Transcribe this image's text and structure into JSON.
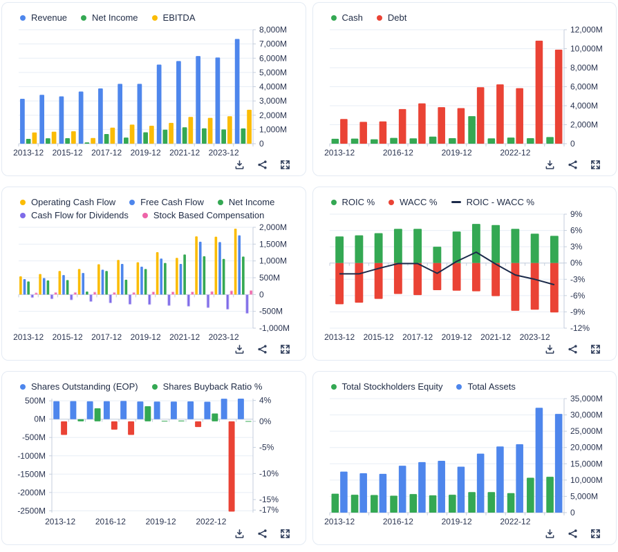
{
  "toolbar": {
    "download_icon": "download-icon",
    "share_icon": "share-icon",
    "expand_icon": "expand-icon"
  },
  "colors": {
    "blue": "#4e86ec",
    "green": "#34a853",
    "yellow": "#fbbc05",
    "red": "#ea4335",
    "purple": "#7e6be8",
    "pink": "#ee64a8",
    "navy_line": "#1b2a4a",
    "grid": "#e7edf5",
    "axis": "#c4cedc",
    "text": "#2a3450"
  },
  "chart_data": [
    {
      "type": "bar",
      "title": "",
      "categories": [
        "2013-12",
        "2014-12",
        "2015-12",
        "2016-12",
        "2017-12",
        "2018-12",
        "2019-12",
        "2020-12",
        "2021-12",
        "2022-12",
        "2023-12",
        "2024-12"
      ],
      "x_label_every": 2,
      "legend": [
        {
          "label": "Revenue",
          "color": "#4e86ec",
          "shape": "dot"
        },
        {
          "label": "Net Income",
          "color": "#34a853",
          "shape": "dot"
        },
        {
          "label": "EBITDA",
          "color": "#fbbc05",
          "shape": "dot"
        }
      ],
      "axes": {
        "right": {
          "min": 0,
          "max": 8000,
          "grid": true,
          "ticks": [
            {
              "v": 8000,
              "label": "8,000M"
            },
            {
              "v": 7000,
              "label": "7,000M"
            },
            {
              "v": 6000,
              "label": "6,000M"
            },
            {
              "v": 5000,
              "label": "5,000M"
            },
            {
              "v": 4000,
              "label": "4,000M"
            },
            {
              "v": 3000,
              "label": "3,000M"
            },
            {
              "v": 2000,
              "label": "2,000M"
            },
            {
              "v": 1000,
              "label": "1,000M"
            },
            {
              "v": 0,
              "label": "0"
            }
          ]
        }
      },
      "series": [
        {
          "name": "Revenue",
          "type": "bar",
          "axis": "right",
          "color": "#4e86ec",
          "values": [
            3150,
            3430,
            3320,
            3660,
            3880,
            4200,
            4200,
            5550,
            5800,
            6150,
            6050,
            7350
          ]
        },
        {
          "name": "Net Income",
          "type": "bar",
          "axis": "right",
          "color": "#34a853",
          "values": [
            340,
            380,
            390,
            90,
            680,
            430,
            800,
            980,
            1150,
            1080,
            1000,
            1070
          ]
        },
        {
          "name": "EBITDA",
          "type": "bar",
          "axis": "right",
          "color": "#fbbc05",
          "values": [
            790,
            840,
            870,
            400,
            1130,
            1340,
            1260,
            1460,
            1880,
            1810,
            1930,
            2380
          ]
        }
      ]
    },
    {
      "type": "bar",
      "title": "",
      "categories": [
        "2013-12",
        "2014-12",
        "2015-12",
        "2016-12",
        "2017-12",
        "2018-12",
        "2019-12",
        "2020-12",
        "2021-12",
        "2022-12",
        "2023-12",
        "2024-12"
      ],
      "x_label_every": 3,
      "legend": [
        {
          "label": "Cash",
          "color": "#34a853",
          "shape": "dot"
        },
        {
          "label": "Debt",
          "color": "#ea4335",
          "shape": "dot"
        }
      ],
      "axes": {
        "right": {
          "min": 0,
          "max": 12000,
          "grid": true,
          "ticks": [
            {
              "v": 12000,
              "label": "12,000M"
            },
            {
              "v": 10000,
              "label": "10,000M"
            },
            {
              "v": 8000,
              "label": "8,000M"
            },
            {
              "v": 6000,
              "label": "6,000M"
            },
            {
              "v": 4000,
              "label": "4,000M"
            },
            {
              "v": 2000,
              "label": "2,000M"
            },
            {
              "v": 0,
              "label": "0"
            }
          ]
        }
      },
      "series": [
        {
          "name": "Cash",
          "type": "bar",
          "axis": "right",
          "color": "#34a853",
          "values": [
            520,
            540,
            460,
            610,
            560,
            750,
            580,
            2900,
            560,
            650,
            580,
            700
          ]
        },
        {
          "name": "Debt",
          "type": "bar",
          "axis": "right",
          "color": "#ea4335",
          "values": [
            2600,
            2300,
            2350,
            3650,
            4250,
            3850,
            3750,
            5950,
            6250,
            5850,
            10850,
            9900
          ]
        }
      ]
    },
    {
      "type": "bar",
      "title": "",
      "categories": [
        "2013-12",
        "2014-12",
        "2015-12",
        "2016-12",
        "2017-12",
        "2018-12",
        "2019-12",
        "2020-12",
        "2021-12",
        "2022-12",
        "2023-12",
        "2024-12"
      ],
      "x_label_every": 2,
      "legend": [
        {
          "label": "Operating Cash Flow",
          "color": "#fbbc05",
          "shape": "dot"
        },
        {
          "label": "Free Cash Flow",
          "color": "#4e86ec",
          "shape": "dot"
        },
        {
          "label": "Net Income",
          "color": "#34a853",
          "shape": "dot"
        },
        {
          "label": "Cash Flow for Dividends",
          "color": "#7e6be8",
          "shape": "dot"
        },
        {
          "label": "Stock Based Compensation",
          "color": "#ee64a8",
          "shape": "dot"
        }
      ],
      "axes": {
        "right": {
          "min": -1000,
          "max": 2000,
          "grid": true,
          "ticks": [
            {
              "v": 2000,
              "label": "2,000M"
            },
            {
              "v": 1500,
              "label": "1,500M"
            },
            {
              "v": 1000,
              "label": "1,000M"
            },
            {
              "v": 500,
              "label": "500M"
            },
            {
              "v": 0,
              "label": "0"
            },
            {
              "v": -500,
              "label": "-500M"
            },
            {
              "v": -1000,
              "label": "-1,000M"
            }
          ]
        }
      },
      "series": [
        {
          "name": "Operating Cash Flow",
          "type": "bar",
          "axis": "right",
          "color": "#fbbc05",
          "values": [
            540,
            610,
            700,
            760,
            900,
            1030,
            960,
            1260,
            1090,
            1730,
            1720,
            1960
          ]
        },
        {
          "name": "Free Cash Flow",
          "type": "bar",
          "axis": "right",
          "color": "#4e86ec",
          "values": [
            460,
            490,
            580,
            640,
            740,
            910,
            830,
            1070,
            910,
            1570,
            1560,
            1760
          ]
        },
        {
          "name": "Net Income",
          "type": "bar",
          "axis": "right",
          "color": "#34a853",
          "values": [
            390,
            420,
            430,
            90,
            700,
            440,
            760,
            940,
            1190,
            1140,
            1060,
            1130
          ]
        },
        {
          "name": "Cash Flow for Dividends",
          "type": "bar",
          "axis": "right",
          "color": "#7e6be8",
          "stroke": "#c9bff5",
          "values": [
            -90,
            -130,
            -160,
            -210,
            -250,
            -290,
            -300,
            -330,
            -350,
            -390,
            -440,
            -560
          ]
        },
        {
          "name": "Stock Based Compensation",
          "type": "bar",
          "axis": "right",
          "color": "#ee64a8",
          "stroke": "#f7bcd8",
          "values": [
            50,
            60,
            60,
            70,
            60,
            60,
            80,
            80,
            80,
            90,
            110,
            120
          ]
        }
      ]
    },
    {
      "type": "bar+line",
      "title": "",
      "overlap_bars": true,
      "categories": [
        "2013-12",
        "2014-12",
        "2015-12",
        "2016-12",
        "2017-12",
        "2018-12",
        "2019-12",
        "2020-12",
        "2021-12",
        "2022-12",
        "2023-12",
        "2024-12"
      ],
      "x_label_every": 2,
      "legend": [
        {
          "label": "ROIC %",
          "color": "#34a853",
          "shape": "dot"
        },
        {
          "label": "WACC %",
          "color": "#ea4335",
          "shape": "dot"
        },
        {
          "label": "ROIC - WACC %",
          "color": "#1b2a4a",
          "shape": "line"
        }
      ],
      "axes": {
        "right": {
          "min": -12,
          "max": 9,
          "grid": true,
          "ticks": [
            {
              "v": 9,
              "label": "9%"
            },
            {
              "v": 6,
              "label": "6%"
            },
            {
              "v": 3,
              "label": "3%"
            },
            {
              "v": 0,
              "label": "0%"
            },
            {
              "v": -3,
              "label": "-3%"
            },
            {
              "v": -6,
              "label": "-6%"
            },
            {
              "v": -9,
              "label": "-9%"
            },
            {
              "v": -12,
              "label": "-12%"
            }
          ]
        }
      },
      "series": [
        {
          "name": "ROIC %",
          "type": "bar",
          "axis": "right",
          "color": "#34a853",
          "values": [
            4.9,
            5.1,
            5.5,
            6.3,
            6.3,
            3.0,
            5.8,
            7.2,
            7.0,
            6.3,
            5.4,
            5.0
          ]
        },
        {
          "name": "WACC %",
          "type": "bar",
          "axis": "right",
          "color": "#ea4335",
          "values": [
            -7.6,
            -7.3,
            -6.6,
            -5.7,
            -5.9,
            -5.0,
            -5.1,
            -5.2,
            -6.1,
            -8.8,
            -8.6,
            -9.1
          ]
        },
        {
          "name": "ROIC - WACC %",
          "type": "line",
          "axis": "right",
          "color": "#1b2a4a",
          "values": [
            -2.0,
            -2.0,
            -1.0,
            -0.1,
            -0.1,
            -1.9,
            0.3,
            2.0,
            -0.2,
            -2.2,
            -3.0,
            -4.0
          ]
        }
      ]
    },
    {
      "type": "bar",
      "title": "",
      "categories": [
        "2013-12",
        "2014-12",
        "2015-12",
        "2016-12",
        "2017-12",
        "2018-12",
        "2019-12",
        "2020-12",
        "2021-12",
        "2022-12",
        "2023-12",
        "2024-12"
      ],
      "x_label_every": 3,
      "legend": [
        {
          "label": "Shares Outstanding (EOP)",
          "color": "#4e86ec",
          "shape": "dot"
        },
        {
          "label": "Shares Buyback Ratio %",
          "color": "#34a853",
          "shape": "dot"
        }
      ],
      "axes": {
        "left": {
          "min": -2550,
          "max": 560,
          "grid": true,
          "ticks": [
            {
              "v": 500,
              "label": "500M"
            },
            {
              "v": 0,
              "label": "0M"
            },
            {
              "v": -500,
              "label": "-500M"
            },
            {
              "v": -1000,
              "label": "-1000M"
            },
            {
              "v": -1500,
              "label": "-1500M"
            },
            {
              "v": -2000,
              "label": "-2000M"
            },
            {
              "v": -2500,
              "label": "-2500M"
            }
          ]
        },
        "right": {
          "min": -17.5,
          "max": 4.35,
          "ticks": [
            {
              "v": 4,
              "label": "4%"
            },
            {
              "v": 0,
              "label": "0%"
            },
            {
              "v": -5,
              "label": "-5%"
            },
            {
              "v": -10,
              "label": "-10%"
            },
            {
              "v": -15,
              "label": "-15%"
            },
            {
              "v": -17,
              "label": "-17%"
            }
          ]
        }
      },
      "series": [
        {
          "name": "Shares Outstanding (EOP)",
          "type": "bar",
          "axis": "left",
          "color": "#4e86ec",
          "values": [
            490,
            492,
            487,
            490,
            497,
            483,
            480,
            479,
            484,
            476,
            558,
            560
          ]
        },
        {
          "name": "Shares Buyback Ratio %",
          "type": "bar",
          "axis": "right",
          "color": "#34a853",
          "neg_color": "#ea4335",
          "values": [
            -2.6,
            0.4,
            2.5,
            -1.6,
            -2.6,
            2.9,
            0.1,
            0.15,
            -1.1,
            1.5,
            -17.3,
            0.05
          ]
        }
      ]
    },
    {
      "type": "bar",
      "title": "",
      "categories": [
        "2013-12",
        "2014-12",
        "2015-12",
        "2016-12",
        "2017-12",
        "2018-12",
        "2019-12",
        "2020-12",
        "2021-12",
        "2022-12",
        "2023-12",
        "2024-12"
      ],
      "x_label_every": 3,
      "legend": [
        {
          "label": "Total Stockholders Equity",
          "color": "#34a853",
          "shape": "dot"
        },
        {
          "label": "Total Assets",
          "color": "#4e86ec",
          "shape": "dot"
        }
      ],
      "axes": {
        "right": {
          "min": 0,
          "max": 35000,
          "grid": true,
          "ticks": [
            {
              "v": 35000,
              "label": "35,000M"
            },
            {
              "v": 30000,
              "label": "30,000M"
            },
            {
              "v": 25000,
              "label": "25,000M"
            },
            {
              "v": 20000,
              "label": "20,000M"
            },
            {
              "v": 15000,
              "label": "15,000M"
            },
            {
              "v": 10000,
              "label": "10,000M"
            },
            {
              "v": 5000,
              "label": "5,000M"
            },
            {
              "v": 0,
              "label": "0"
            }
          ]
        }
      },
      "series": [
        {
          "name": "Total Stockholders Equity",
          "type": "bar",
          "axis": "right",
          "color": "#34a853",
          "values": [
            5800,
            5500,
            5400,
            5200,
            5700,
            5300,
            5500,
            6300,
            6300,
            6000,
            10700,
            11000
          ]
        },
        {
          "name": "Total Assets",
          "type": "bar",
          "axis": "right",
          "color": "#4e86ec",
          "values": [
            12600,
            12100,
            11900,
            14400,
            15500,
            15900,
            14100,
            18100,
            20300,
            21000,
            32200,
            30300
          ]
        }
      ]
    }
  ]
}
